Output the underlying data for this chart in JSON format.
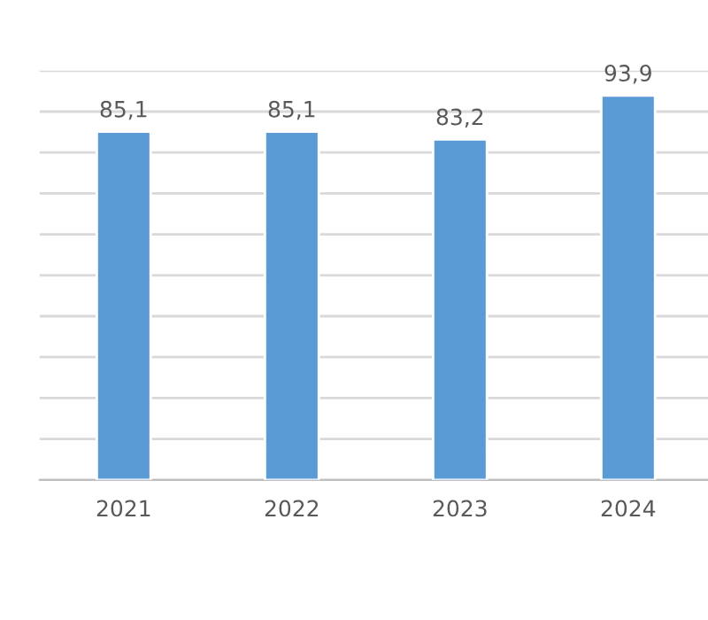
{
  "chart_data": {
    "type": "bar",
    "categories": [
      "2021",
      "2022",
      "2023",
      "2024"
    ],
    "values": [
      85.1,
      85.1,
      83.2,
      93.9
    ],
    "value_labels": [
      "85,1",
      "85,1",
      "83,2",
      "93,9"
    ],
    "color": "#5b9bd5",
    "ylim": [
      0,
      100
    ],
    "yticks": [
      {
        "value": 0,
        "label": null
      },
      {
        "value": 10,
        "label": null
      },
      {
        "value": 20,
        "label": null
      },
      {
        "value": 30,
        "label": null
      },
      {
        "value": 40,
        "label": null
      },
      {
        "value": 50,
        "label": null
      },
      {
        "value": 60,
        "label": null
      },
      {
        "value": 70,
        "label": null
      },
      {
        "value": 80,
        "label": null
      },
      {
        "value": 90,
        "label": null
      },
      {
        "value": 100,
        "label": null
      }
    ],
    "tick_labels": "x",
    "grid": "y",
    "legend": false
  }
}
